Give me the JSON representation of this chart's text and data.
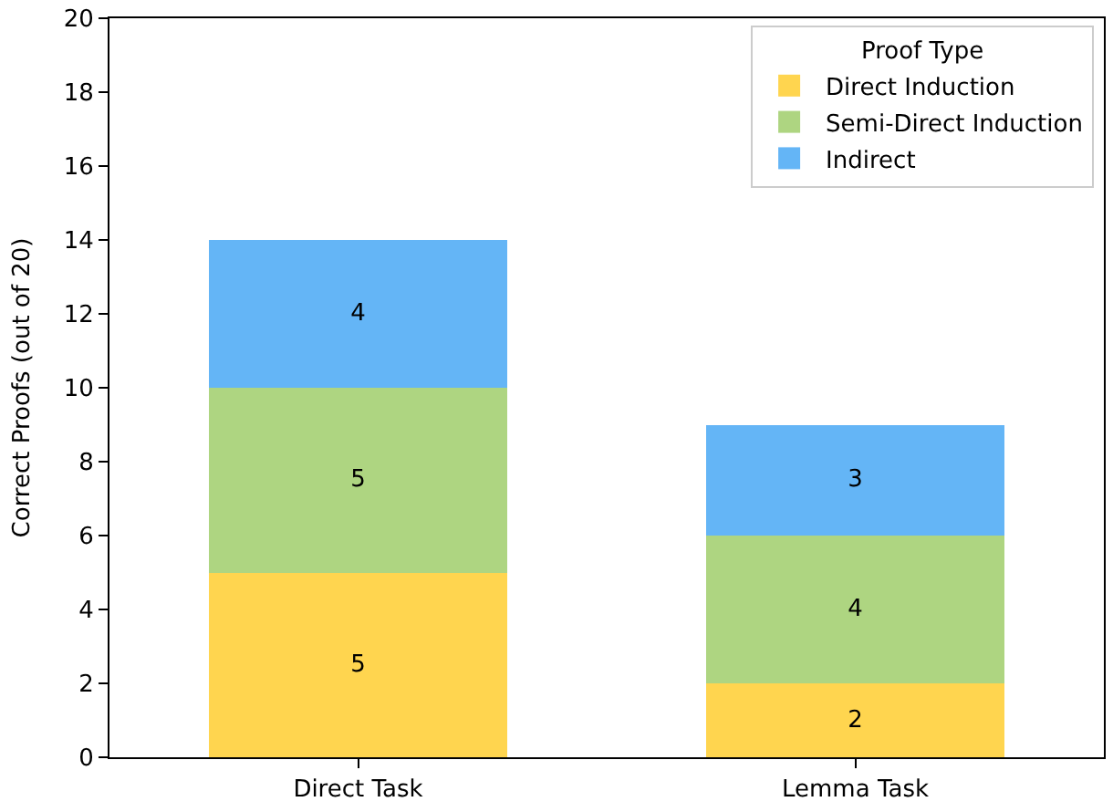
{
  "chart_data": {
    "type": "bar",
    "stacked": true,
    "categories": [
      "Direct Task",
      "Lemma Task"
    ],
    "ylabel": "Correct Proofs (out of 20)",
    "legend_title": "Proof Type",
    "legend": "top right",
    "data_labels": true,
    "ylim": [
      0,
      20
    ],
    "yticks": [
      0,
      2,
      4,
      6,
      8,
      10,
      12,
      14,
      16,
      18,
      20
    ],
    "series": [
      {
        "name": "Direct Induction",
        "color": "#ffd54f",
        "values": [
          5,
          2
        ]
      },
      {
        "name": "Semi-Direct Induction",
        "color": "#aed581",
        "values": [
          5,
          4
        ]
      },
      {
        "name": "Indirect",
        "color": "#64b5f6",
        "values": [
          4,
          3
        ]
      }
    ]
  }
}
